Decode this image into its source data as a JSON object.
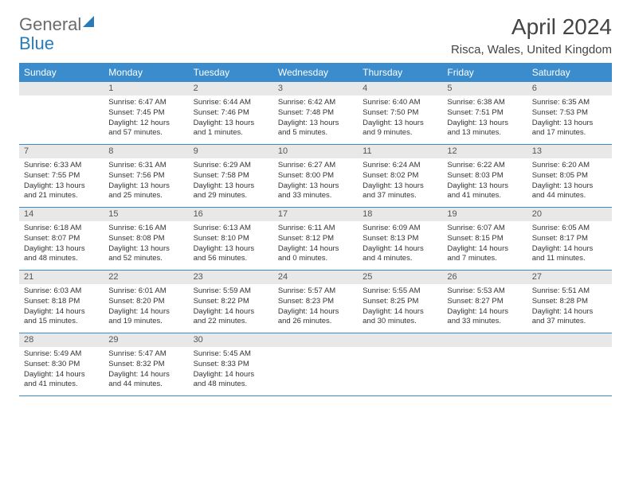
{
  "logo": {
    "word1": "General",
    "word2": "Blue"
  },
  "title": "April 2024",
  "location": "Risca, Wales, United Kingdom",
  "weekdays": [
    "Sunday",
    "Monday",
    "Tuesday",
    "Wednesday",
    "Thursday",
    "Friday",
    "Saturday"
  ],
  "header_bg": "#3a8ccc",
  "daynum_bg": "#e8e8e8",
  "border_color": "#3a8ccc",
  "weeks": [
    [
      {
        "day": "",
        "sunrise": "",
        "sunset": "",
        "daylight": ""
      },
      {
        "day": "1",
        "sunrise": "Sunrise: 6:47 AM",
        "sunset": "Sunset: 7:45 PM",
        "daylight": "Daylight: 12 hours and 57 minutes."
      },
      {
        "day": "2",
        "sunrise": "Sunrise: 6:44 AM",
        "sunset": "Sunset: 7:46 PM",
        "daylight": "Daylight: 13 hours and 1 minutes."
      },
      {
        "day": "3",
        "sunrise": "Sunrise: 6:42 AM",
        "sunset": "Sunset: 7:48 PM",
        "daylight": "Daylight: 13 hours and 5 minutes."
      },
      {
        "day": "4",
        "sunrise": "Sunrise: 6:40 AM",
        "sunset": "Sunset: 7:50 PM",
        "daylight": "Daylight: 13 hours and 9 minutes."
      },
      {
        "day": "5",
        "sunrise": "Sunrise: 6:38 AM",
        "sunset": "Sunset: 7:51 PM",
        "daylight": "Daylight: 13 hours and 13 minutes."
      },
      {
        "day": "6",
        "sunrise": "Sunrise: 6:35 AM",
        "sunset": "Sunset: 7:53 PM",
        "daylight": "Daylight: 13 hours and 17 minutes."
      }
    ],
    [
      {
        "day": "7",
        "sunrise": "Sunrise: 6:33 AM",
        "sunset": "Sunset: 7:55 PM",
        "daylight": "Daylight: 13 hours and 21 minutes."
      },
      {
        "day": "8",
        "sunrise": "Sunrise: 6:31 AM",
        "sunset": "Sunset: 7:56 PM",
        "daylight": "Daylight: 13 hours and 25 minutes."
      },
      {
        "day": "9",
        "sunrise": "Sunrise: 6:29 AM",
        "sunset": "Sunset: 7:58 PM",
        "daylight": "Daylight: 13 hours and 29 minutes."
      },
      {
        "day": "10",
        "sunrise": "Sunrise: 6:27 AM",
        "sunset": "Sunset: 8:00 PM",
        "daylight": "Daylight: 13 hours and 33 minutes."
      },
      {
        "day": "11",
        "sunrise": "Sunrise: 6:24 AM",
        "sunset": "Sunset: 8:02 PM",
        "daylight": "Daylight: 13 hours and 37 minutes."
      },
      {
        "day": "12",
        "sunrise": "Sunrise: 6:22 AM",
        "sunset": "Sunset: 8:03 PM",
        "daylight": "Daylight: 13 hours and 41 minutes."
      },
      {
        "day": "13",
        "sunrise": "Sunrise: 6:20 AM",
        "sunset": "Sunset: 8:05 PM",
        "daylight": "Daylight: 13 hours and 44 minutes."
      }
    ],
    [
      {
        "day": "14",
        "sunrise": "Sunrise: 6:18 AM",
        "sunset": "Sunset: 8:07 PM",
        "daylight": "Daylight: 13 hours and 48 minutes."
      },
      {
        "day": "15",
        "sunrise": "Sunrise: 6:16 AM",
        "sunset": "Sunset: 8:08 PM",
        "daylight": "Daylight: 13 hours and 52 minutes."
      },
      {
        "day": "16",
        "sunrise": "Sunrise: 6:13 AM",
        "sunset": "Sunset: 8:10 PM",
        "daylight": "Daylight: 13 hours and 56 minutes."
      },
      {
        "day": "17",
        "sunrise": "Sunrise: 6:11 AM",
        "sunset": "Sunset: 8:12 PM",
        "daylight": "Daylight: 14 hours and 0 minutes."
      },
      {
        "day": "18",
        "sunrise": "Sunrise: 6:09 AM",
        "sunset": "Sunset: 8:13 PM",
        "daylight": "Daylight: 14 hours and 4 minutes."
      },
      {
        "day": "19",
        "sunrise": "Sunrise: 6:07 AM",
        "sunset": "Sunset: 8:15 PM",
        "daylight": "Daylight: 14 hours and 7 minutes."
      },
      {
        "day": "20",
        "sunrise": "Sunrise: 6:05 AM",
        "sunset": "Sunset: 8:17 PM",
        "daylight": "Daylight: 14 hours and 11 minutes."
      }
    ],
    [
      {
        "day": "21",
        "sunrise": "Sunrise: 6:03 AM",
        "sunset": "Sunset: 8:18 PM",
        "daylight": "Daylight: 14 hours and 15 minutes."
      },
      {
        "day": "22",
        "sunrise": "Sunrise: 6:01 AM",
        "sunset": "Sunset: 8:20 PM",
        "daylight": "Daylight: 14 hours and 19 minutes."
      },
      {
        "day": "23",
        "sunrise": "Sunrise: 5:59 AM",
        "sunset": "Sunset: 8:22 PM",
        "daylight": "Daylight: 14 hours and 22 minutes."
      },
      {
        "day": "24",
        "sunrise": "Sunrise: 5:57 AM",
        "sunset": "Sunset: 8:23 PM",
        "daylight": "Daylight: 14 hours and 26 minutes."
      },
      {
        "day": "25",
        "sunrise": "Sunrise: 5:55 AM",
        "sunset": "Sunset: 8:25 PM",
        "daylight": "Daylight: 14 hours and 30 minutes."
      },
      {
        "day": "26",
        "sunrise": "Sunrise: 5:53 AM",
        "sunset": "Sunset: 8:27 PM",
        "daylight": "Daylight: 14 hours and 33 minutes."
      },
      {
        "day": "27",
        "sunrise": "Sunrise: 5:51 AM",
        "sunset": "Sunset: 8:28 PM",
        "daylight": "Daylight: 14 hours and 37 minutes."
      }
    ],
    [
      {
        "day": "28",
        "sunrise": "Sunrise: 5:49 AM",
        "sunset": "Sunset: 8:30 PM",
        "daylight": "Daylight: 14 hours and 41 minutes."
      },
      {
        "day": "29",
        "sunrise": "Sunrise: 5:47 AM",
        "sunset": "Sunset: 8:32 PM",
        "daylight": "Daylight: 14 hours and 44 minutes."
      },
      {
        "day": "30",
        "sunrise": "Sunrise: 5:45 AM",
        "sunset": "Sunset: 8:33 PM",
        "daylight": "Daylight: 14 hours and 48 minutes."
      },
      {
        "day": "",
        "sunrise": "",
        "sunset": "",
        "daylight": ""
      },
      {
        "day": "",
        "sunrise": "",
        "sunset": "",
        "daylight": ""
      },
      {
        "day": "",
        "sunrise": "",
        "sunset": "",
        "daylight": ""
      },
      {
        "day": "",
        "sunrise": "",
        "sunset": "",
        "daylight": ""
      }
    ]
  ]
}
